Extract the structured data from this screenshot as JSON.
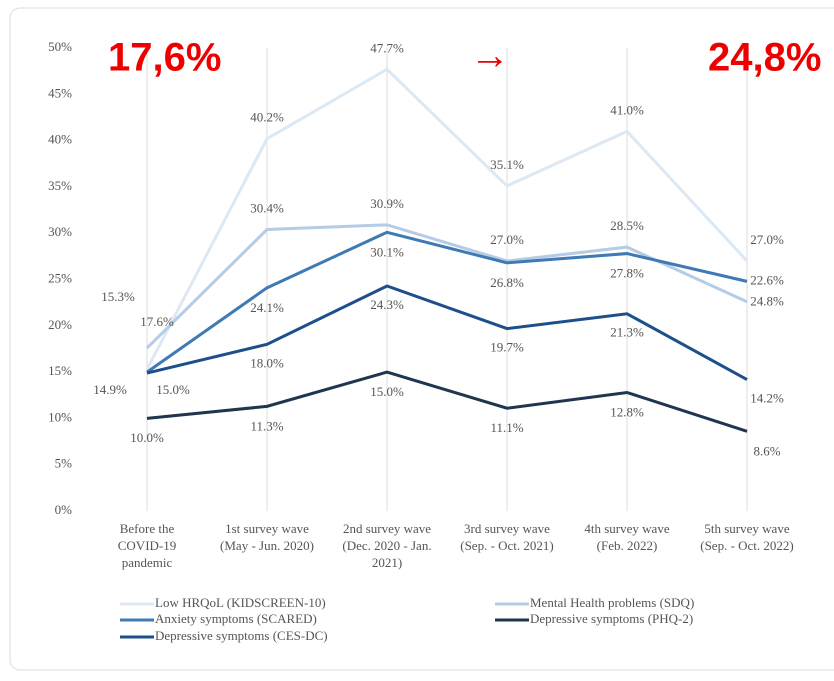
{
  "chart_data": {
    "type": "line",
    "categories": [
      [
        "Before the",
        "COVID-19",
        "pandemic"
      ],
      [
        "1st survey wave",
        "(May - Jun. 2020)"
      ],
      [
        "2nd survey wave",
        "(Dec. 2020 - Jan.",
        "2021)"
      ],
      [
        "3rd survey wave",
        "(Sep. - Oct. 2021)"
      ],
      [
        "4th survey wave",
        "(Feb. 2022)"
      ],
      [
        "5th survey wave",
        "(Sep. - Oct. 2022)"
      ]
    ],
    "ylim": [
      0,
      50
    ],
    "yticks": [
      {
        "value": 0,
        "label": "0%"
      },
      {
        "value": 5,
        "label": "5%"
      },
      {
        "value": 10,
        "label": "10%"
      },
      {
        "value": 15,
        "label": "15%"
      },
      {
        "value": 20,
        "label": "20%"
      },
      {
        "value": 25,
        "label": "25%"
      },
      {
        "value": 30,
        "label": "30%"
      },
      {
        "value": 35,
        "label": "35%"
      },
      {
        "value": 40,
        "label": "40%"
      },
      {
        "value": 45,
        "label": "45%"
      },
      {
        "value": 50,
        "label": "50%"
      }
    ],
    "grid": "x",
    "series": [
      {
        "name": "Low HRQoL (KIDSCREEN-10)",
        "color": "#dce8f4",
        "values": [
          15.3,
          40.2,
          47.7,
          35.1,
          41.0,
          27.0
        ],
        "value_labels": [
          "15.3%",
          "40.2%",
          "47.7%",
          "35.1%",
          "41.0%",
          "27.0%"
        ]
      },
      {
        "name": "Mental Health problems (SDQ)",
        "color": "#b4cce6",
        "values": [
          17.6,
          30.4,
          30.9,
          27.0,
          28.5,
          22.6
        ],
        "value_labels": [
          "17.6%",
          "30.4%",
          "30.9%",
          "27.0%",
          "28.5%",
          "22.6%"
        ]
      },
      {
        "name": "Anxiety symptoms (SCARED)",
        "color": "#3f7ab5",
        "values": [
          15.0,
          24.1,
          30.1,
          26.8,
          27.8,
          24.8
        ],
        "value_labels": [
          "15.0%",
          "24.1%",
          "30.1%",
          "26.8%",
          "27.8%",
          "24.8%"
        ]
      },
      {
        "name": "Depressive symptoms (PHQ-2)",
        "color": "#1f3550",
        "values": [
          10.0,
          11.3,
          15.0,
          11.1,
          12.8,
          8.6
        ],
        "value_labels": [
          "10.0%",
          "11.3%",
          "15.0%",
          "11.1%",
          "12.8%",
          "8.6%"
        ]
      },
      {
        "name": "Depressive symptoms (CES-DC)",
        "color": "#1d4f8c",
        "values": [
          14.9,
          18.0,
          24.3,
          19.7,
          21.3,
          14.2
        ],
        "value_labels": [
          "14.9%",
          "18.0%",
          "24.3%",
          "19.7%",
          "21.3%",
          "14.2%"
        ]
      }
    ],
    "annotations": [
      "17,6%",
      "→",
      "24,8%"
    ],
    "annotation_color": "#ee0000"
  }
}
